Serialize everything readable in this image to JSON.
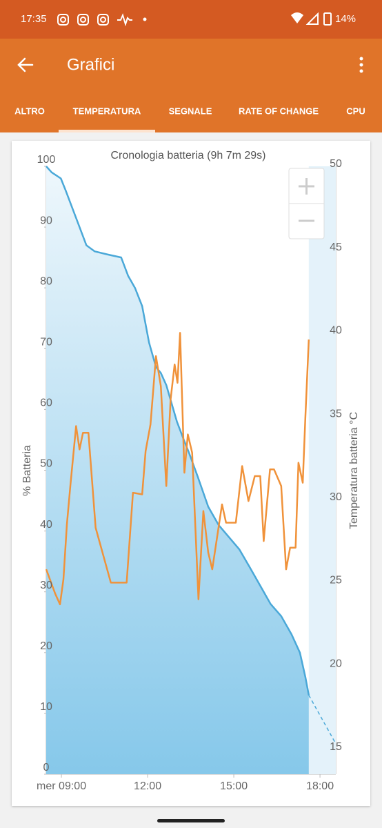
{
  "status_bar": {
    "time": "17:35",
    "battery": "14%"
  },
  "app_bar": {
    "title": "Grafici"
  },
  "tabs": [
    "ALTRO",
    "TEMPERATURA",
    "SEGNALE",
    "RATE OF CHANGE",
    "CPU"
  ],
  "selected_tab": 1,
  "chart_data": {
    "type": "line",
    "title": "Cronologia batteria (9h 7m 29s)",
    "ylabel": "% Batteria",
    "y2label": "Temperatura batteria °C",
    "xlim": [
      8.47,
      18.55
    ],
    "xticks": [
      {
        "value": 9,
        "label": "mer 09:00"
      },
      {
        "value": 12,
        "label": "12:00"
      },
      {
        "value": 15,
        "label": "15:00"
      },
      {
        "value": 18,
        "label": "18:00"
      }
    ],
    "ylim": [
      0,
      100
    ],
    "yticks": [
      0,
      10,
      20,
      30,
      40,
      50,
      60,
      70,
      80,
      90,
      100
    ],
    "y2lim": [
      13.5,
      50
    ],
    "y2ticks": [
      15,
      20,
      25,
      30,
      35,
      40,
      45,
      50
    ],
    "series": [
      {
        "color": "#4aa8d8",
        "fill": true,
        "x": [
          8.47,
          8.66,
          8.98,
          9.15,
          9.39,
          9.63,
          9.87,
          10.16,
          10.6,
          11.08,
          11.32,
          11.56,
          11.81,
          12.05,
          12.29,
          12.46,
          12.65,
          13.02,
          13.26,
          13.43,
          13.74,
          14.11,
          14.47,
          14.83,
          15.19,
          15.56,
          15.92,
          16.28,
          16.65,
          17.01,
          17.3,
          17.49,
          17.61
        ],
        "values": [
          100,
          99,
          98,
          96,
          93,
          90,
          87,
          86,
          85.5,
          85,
          82,
          80,
          77,
          71,
          67,
          66,
          64,
          58,
          55,
          53,
          49,
          44,
          41,
          39,
          37,
          34,
          31,
          28,
          26,
          23,
          20,
          16,
          13
        ]
      },
      {
        "color": "#f0923a",
        "axis": "y2",
        "x": [
          8.47,
          8.78,
          8.95,
          9.07,
          9.19,
          9.31,
          9.51,
          9.63,
          9.75,
          9.94,
          10.19,
          10.72,
          11.27,
          11.49,
          11.81,
          11.93,
          12.1,
          12.29,
          12.46,
          12.65,
          12.8,
          12.94,
          13.04,
          13.13,
          13.28,
          13.4,
          13.55,
          13.77,
          13.94,
          14.11,
          14.25,
          14.59,
          14.73,
          15.07,
          15.29,
          15.51,
          15.73,
          15.92,
          16.04,
          16.26,
          16.4,
          16.65,
          16.82,
          16.96,
          17.15,
          17.25,
          17.4,
          17.49,
          17.61
        ],
        "values": [
          25.8,
          24.35,
          23.7,
          25.2,
          28.5,
          30.8,
          34.4,
          33.0,
          34.0,
          34.0,
          28.3,
          25.0,
          25.0,
          30.4,
          30.3,
          32.9,
          34.5,
          38.6,
          36.8,
          30.8,
          36.0,
          38.1,
          37.0,
          40.0,
          31.6,
          33.9,
          32.8,
          24.0,
          29.3,
          26.8,
          25.8,
          29.7,
          28.6,
          28.6,
          32.0,
          29.9,
          31.4,
          31.4,
          27.5,
          31.8,
          31.8,
          30.8,
          25.8,
          27.1,
          27.1,
          32.2,
          31.0,
          34.9,
          39.6
        ]
      }
    ],
    "projection": {
      "color": "#4aa8d8",
      "x": [
        17.61,
        18.55
      ],
      "values": [
        13,
        5
      ]
    }
  }
}
